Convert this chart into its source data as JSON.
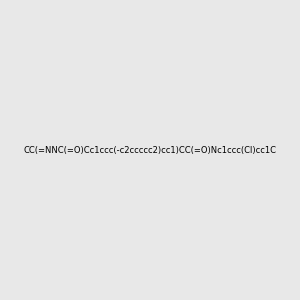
{
  "smiles": "CC(=NNC(=O)Cc1ccc(-c2ccccc2)cc1)CC(=O)Nc1ccc(Cl)cc1C",
  "image_size": 300,
  "background_color": "#e8e8e8",
  "title": ""
}
